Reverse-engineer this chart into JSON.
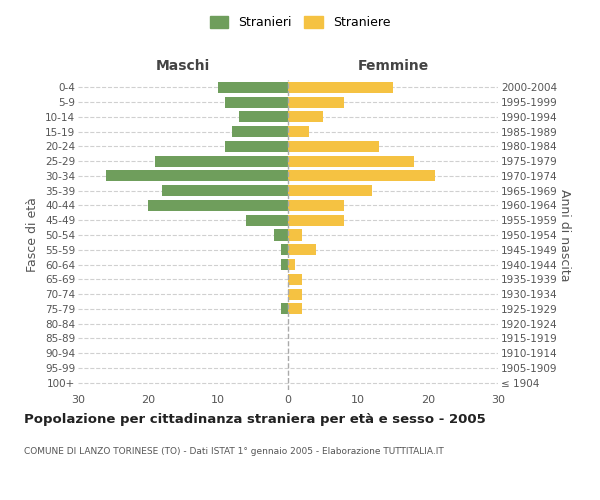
{
  "age_groups": [
    "100+",
    "95-99",
    "90-94",
    "85-89",
    "80-84",
    "75-79",
    "70-74",
    "65-69",
    "60-64",
    "55-59",
    "50-54",
    "45-49",
    "40-44",
    "35-39",
    "30-34",
    "25-29",
    "20-24",
    "15-19",
    "10-14",
    "5-9",
    "0-4"
  ],
  "birth_years": [
    "≤ 1904",
    "1905-1909",
    "1910-1914",
    "1915-1919",
    "1920-1924",
    "1925-1929",
    "1930-1934",
    "1935-1939",
    "1940-1944",
    "1945-1949",
    "1950-1954",
    "1955-1959",
    "1960-1964",
    "1965-1969",
    "1970-1974",
    "1975-1979",
    "1980-1984",
    "1985-1989",
    "1990-1994",
    "1995-1999",
    "2000-2004"
  ],
  "maschi": [
    0,
    0,
    0,
    0,
    0,
    1,
    0,
    0,
    1,
    1,
    2,
    6,
    20,
    18,
    26,
    19,
    9,
    8,
    7,
    9,
    10
  ],
  "femmine": [
    0,
    0,
    0,
    0,
    0,
    2,
    2,
    2,
    1,
    4,
    2,
    8,
    8,
    12,
    21,
    18,
    13,
    3,
    5,
    8,
    15
  ],
  "male_color": "#6f9e5c",
  "female_color": "#f5c242",
  "title": "Popolazione per cittadinanza straniera per età e sesso - 2005",
  "subtitle": "COMUNE DI LANZO TORINESE (TO) - Dati ISTAT 1° gennaio 2005 - Elaborazione TUTTITALIA.IT",
  "header_left": "Maschi",
  "header_right": "Femmine",
  "ylabel_left": "Fasce di età",
  "ylabel_right": "Anni di nascita",
  "xlim": 30,
  "legend_stranieri": "Stranieri",
  "legend_straniere": "Straniere",
  "bg_color": "#ffffff",
  "grid_color": "#d0d0d0",
  "vline_color": "#aaaaaa"
}
